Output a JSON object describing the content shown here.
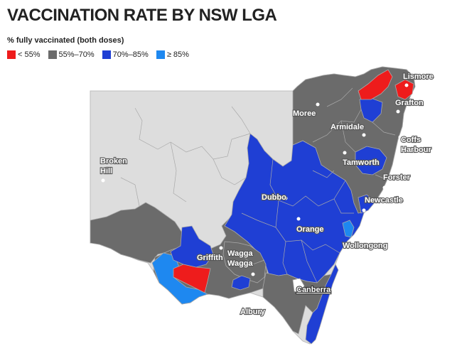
{
  "title": "VACCINATION RATE BY NSW LGA",
  "subtitle": "% fully vaccinated (both doses)",
  "legend": [
    {
      "label": "< 55%",
      "color": "#ee1c1c"
    },
    {
      "label": "55%–70%",
      "color": "#6b6b6b"
    },
    {
      "label": "70%–85%",
      "color": "#1f3fd4"
    },
    {
      "label": "≥ 85%",
      "color": "#1e88f0"
    }
  ],
  "colors": {
    "no_data": "#dddddd",
    "boundary": "#a9a9a9"
  },
  "cities": {
    "lismore": "Lismore",
    "grafton": "Grafton",
    "moree": "Moree",
    "armidale": "Armidale",
    "coffs_1": "Coffs",
    "coffs_2": "Harbour",
    "broken_hill_1": "Broken",
    "broken_hill_2": "Hill",
    "tamworth": "Tamworth",
    "forster": "Forster",
    "dubbo": "Dubbo",
    "newcastle": "Newcastle",
    "orange": "Orange",
    "wollongong": "Wollongong",
    "griffith": "Griffith",
    "wagga_1": "Wagga",
    "wagga_2": "Wagga",
    "canberra": "Canberra",
    "albury": "Albury"
  }
}
